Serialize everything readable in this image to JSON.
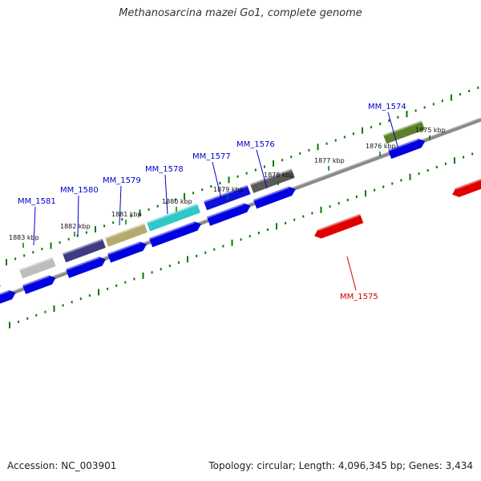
{
  "title": "Methanosarcina mazei Go1, complete genome",
  "footer": {
    "accession": "Accession: NC_003901",
    "summary": "Topology: circular; Length: 4,096,345 bp; Genes: 3,434"
  },
  "colors": {
    "forward_gene": "#0000e0",
    "reverse_gene": "#e00000",
    "ticks": "#007a00",
    "backbone": "#7a7a7a",
    "forward_label": "#0000cc",
    "reverse_label": "#cc0000"
  },
  "scale_labels": [
    "1883 kbp",
    "1882 kbp",
    "1881 kbp",
    "1880 kbp",
    "1879 kbp",
    "1878 kbp",
    "1877 kbp",
    "1876 kbp",
    "1875 kbp"
  ],
  "genes": [
    {
      "name": "MM_1581",
      "strand": "forward"
    },
    {
      "name": "MM_1580",
      "strand": "forward"
    },
    {
      "name": "MM_1579",
      "strand": "forward"
    },
    {
      "name": "MM_1578",
      "strand": "forward"
    },
    {
      "name": "MM_1577",
      "strand": "forward"
    },
    {
      "name": "MM_1576",
      "strand": "forward"
    },
    {
      "name": "MM_1575",
      "strand": "reverse"
    },
    {
      "name": "MM_1574",
      "strand": "forward"
    }
  ],
  "feature_colors": [
    "#9a9a9a",
    "#bdbdbd",
    "#3d3b82",
    "#b5aa6e",
    "#2ec8c8",
    "#1010dd",
    "#5a5a5a",
    "#5f7f2a"
  ]
}
